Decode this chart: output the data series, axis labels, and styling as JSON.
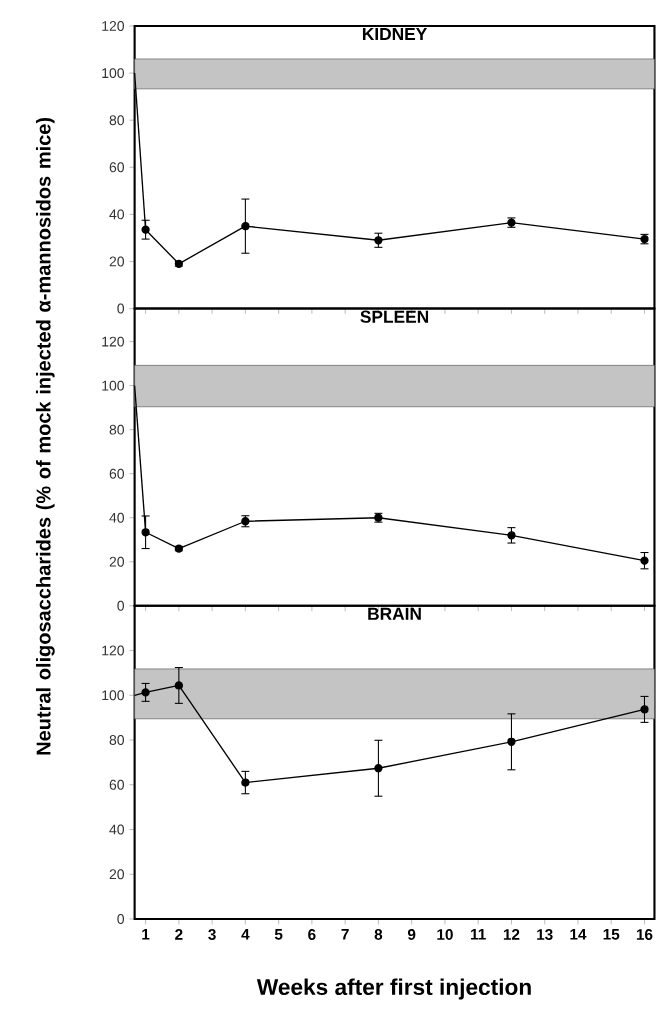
{
  "chart_data": [
    {
      "type": "line",
      "title": "KIDNEY",
      "xlim": [
        0.67,
        16.3
      ],
      "xticks": [
        1,
        2,
        3,
        4,
        5,
        6,
        7,
        8,
        9,
        10,
        11,
        12,
        13,
        14,
        15,
        16
      ],
      "ylim": [
        0,
        120
      ],
      "yticks": [
        0,
        20,
        40,
        60,
        80,
        100,
        120
      ],
      "tick_labels": "y",
      "marker": "circle",
      "bands": [
        {
          "axis": "y",
          "from": 93.3,
          "to": 106,
          "color": "#c4c4c4"
        }
      ],
      "series": [
        {
          "type": "line",
          "color": "#000000",
          "marker": "none",
          "x": [
            0.67,
            1
          ],
          "values": [
            100,
            33.5
          ]
        },
        {
          "color": "#000000",
          "x": [
            1,
            2,
            4,
            8,
            12,
            16
          ],
          "values": [
            33.5,
            19,
            35,
            29,
            36.5,
            29.5
          ],
          "errors": [
            4,
            1,
            11.5,
            3,
            2,
            2
          ]
        }
      ]
    },
    {
      "type": "line",
      "title": "SPLEEN",
      "ylabel": "Neutral oligosaccharides (% of mock injected α-mannosidos mice)",
      "xlim": [
        0.67,
        16.3
      ],
      "xticks": [
        1,
        2,
        3,
        4,
        5,
        6,
        7,
        8,
        9,
        10,
        11,
        12,
        13,
        14,
        15,
        16
      ],
      "ylim": [
        0,
        135
      ],
      "yticks": [
        0,
        20,
        40,
        60,
        80,
        100,
        120
      ],
      "tick_labels": "y",
      "marker": "circle",
      "bands": [
        {
          "axis": "y",
          "from": 90.4,
          "to": 109.2,
          "color": "#c4c4c4"
        }
      ],
      "series": [
        {
          "type": "line",
          "color": "#000000",
          "marker": "none",
          "x": [
            0.67,
            1
          ],
          "values": [
            100,
            33.4
          ]
        },
        {
          "color": "#000000",
          "x": [
            1,
            2,
            4,
            8,
            12,
            16
          ],
          "values": [
            33.4,
            26,
            38.4,
            40,
            32,
            20.5
          ],
          "errors": [
            7.4,
            1,
            2.5,
            2,
            3.5,
            3.7
          ]
        }
      ]
    },
    {
      "type": "line",
      "title": "BRAIN",
      "xlabel": "Weeks after first injection",
      "xlim": [
        0.67,
        16.3
      ],
      "xticks": [
        1,
        2,
        3,
        4,
        5,
        6,
        7,
        8,
        9,
        10,
        11,
        12,
        13,
        14,
        15,
        16
      ],
      "ylim": [
        0,
        140
      ],
      "yticks": [
        0,
        20,
        40,
        60,
        80,
        100,
        120
      ],
      "marker": "circle",
      "bands": [
        {
          "axis": "y",
          "from": 89.5,
          "to": 111.8,
          "color": "#c4c4c4"
        }
      ],
      "series": [
        {
          "type": "line",
          "color": "#000000",
          "marker": "none",
          "x": [
            0.67,
            1
          ],
          "values": [
            100,
            101.3
          ]
        },
        {
          "color": "#000000",
          "x": [
            1,
            2,
            4,
            8,
            12,
            16
          ],
          "values": [
            101.3,
            104.4,
            61,
            67.4,
            79.2,
            93.7
          ],
          "errors": [
            4,
            8,
            5,
            12.5,
            12.5,
            5.8
          ]
        }
      ]
    }
  ]
}
